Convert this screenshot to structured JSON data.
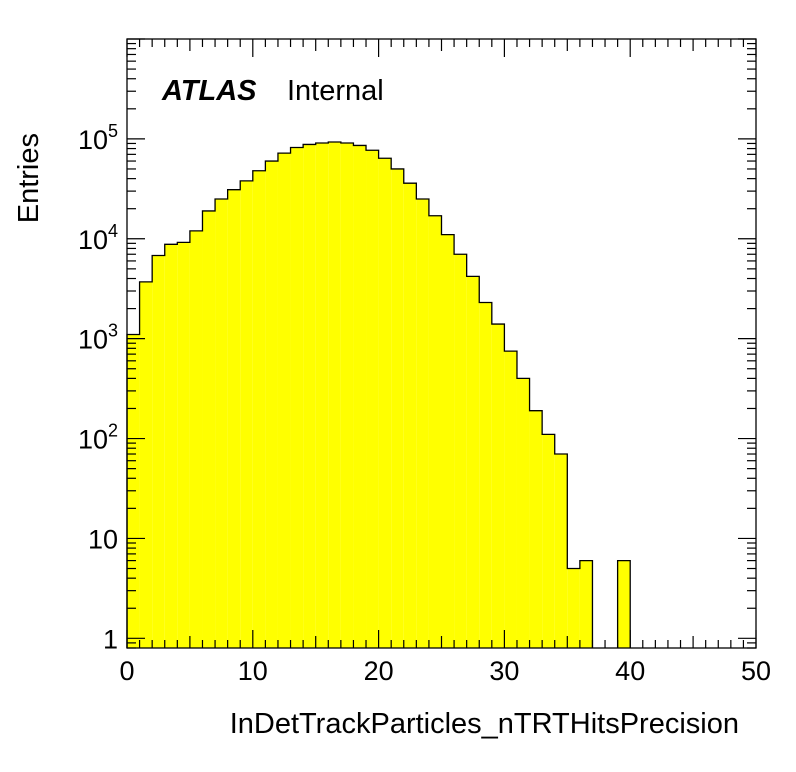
{
  "chart_data": {
    "type": "bar",
    "title": "",
    "xlabel": "InDetTrackParticles_nTRTHitsPrecision",
    "ylabel": "Entries",
    "xlim": [
      0,
      50
    ],
    "ylim": [
      0.8,
      1000000
    ],
    "log_y": true,
    "grid": false,
    "legend": "none",
    "fill_color": "#ffff00",
    "line_color": "#000000",
    "bin_width": 1,
    "bin_low_edges": [
      0,
      1,
      2,
      3,
      4,
      5,
      6,
      7,
      8,
      9,
      10,
      11,
      12,
      13,
      14,
      15,
      16,
      17,
      18,
      19,
      20,
      21,
      22,
      23,
      24,
      25,
      26,
      27,
      28,
      29,
      30,
      31,
      32,
      33,
      34,
      35,
      36,
      37,
      38,
      39,
      40,
      41,
      42,
      43,
      44,
      45,
      46,
      47,
      48,
      49
    ],
    "values": [
      1100,
      3700,
      6800,
      8800,
      9200,
      12000,
      19000,
      25000,
      31000,
      38000,
      48000,
      60000,
      72000,
      82000,
      88000,
      91000,
      93000,
      91000,
      86000,
      77000,
      64000,
      50000,
      36000,
      25000,
      17000,
      11000,
      7000,
      4200,
      2300,
      1400,
      750,
      400,
      190,
      110,
      70,
      5,
      6,
      0,
      0,
      6,
      0,
      0,
      0,
      0,
      0,
      0,
      0,
      0,
      0,
      0
    ],
    "x_ticks": [
      "0",
      "10",
      "20",
      "30",
      "40",
      "50"
    ],
    "x_tick_values": [
      0,
      10,
      20,
      30,
      40,
      50
    ],
    "y_tick_labels": [
      {
        "value": 1,
        "base": "1",
        "exp": ""
      },
      {
        "value": 10,
        "base": "10",
        "exp": ""
      },
      {
        "value": 100,
        "base": "10",
        "exp": "2"
      },
      {
        "value": 1000,
        "base": "10",
        "exp": "3"
      },
      {
        "value": 10000,
        "base": "10",
        "exp": "4"
      },
      {
        "value": 100000,
        "base": "10",
        "exp": "5"
      }
    ],
    "annotation": {
      "bold": "ATLAS",
      "normal": "Internal"
    }
  }
}
